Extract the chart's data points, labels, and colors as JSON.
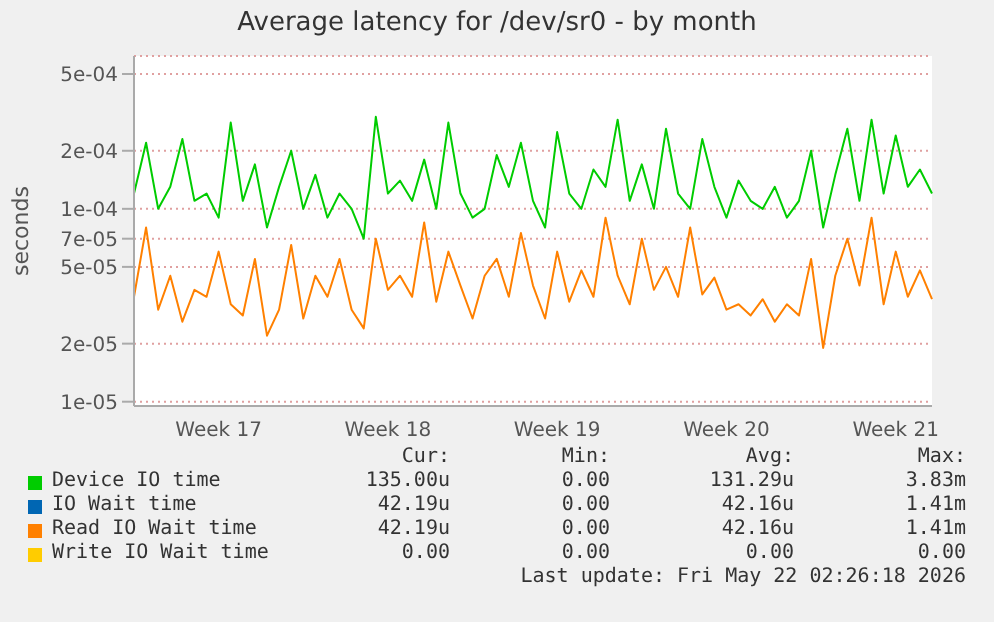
{
  "chart_data": {
    "type": "line",
    "title": "Average latency for /dev/sr0 - by month",
    "ylabel": "seconds",
    "categories": [
      null,
      null,
      null,
      null,
      null,
      null,
      null,
      "Week 17",
      null,
      null,
      null,
      null,
      null,
      null,
      null,
      null,
      null,
      null,
      null,
      null,
      null,
      "Week 18",
      null,
      null,
      null,
      null,
      null,
      null,
      null,
      null,
      null,
      null,
      null,
      null,
      null,
      "Week 19",
      null,
      null,
      null,
      null,
      null,
      null,
      null,
      null,
      null,
      null,
      null,
      null,
      null,
      "Week 20",
      null,
      null,
      null,
      null,
      null,
      null,
      null,
      null,
      null,
      null,
      null,
      null,
      null,
      "Week 21",
      null,
      null,
      null
    ],
    "ylim": [
      9.5e-06,
      0.00062
    ],
    "yticks": [
      {
        "value": 1e-05,
        "label": "1e-05"
      },
      {
        "value": 2e-05,
        "label": "2e-05"
      },
      {
        "value": 5e-05,
        "label": "5e-05"
      },
      {
        "value": 7e-05,
        "label": "7e-05"
      },
      {
        "value": 0.0001,
        "label": "1e-04"
      },
      {
        "value": 0.0002,
        "label": "2e-04"
      },
      {
        "value": 0.0005,
        "label": "5e-04"
      }
    ],
    "log": "y",
    "grid": true,
    "legend": "bottom",
    "series": [
      {
        "name": "Device IO time",
        "color": "#00cc00",
        "values": [
          0.00012,
          0.00022,
          0.0001,
          0.00013,
          0.00023,
          0.00011,
          0.00012,
          9e-05,
          0.00028,
          0.00011,
          0.00017,
          8e-05,
          0.00013,
          0.0002,
          0.0001,
          0.00015,
          9e-05,
          0.00012,
          0.0001,
          7e-05,
          0.0003,
          0.00012,
          0.00014,
          0.00011,
          0.00018,
          0.0001,
          0.00028,
          0.00012,
          9e-05,
          0.0001,
          0.00019,
          0.00013,
          0.00022,
          0.00011,
          8e-05,
          0.00025,
          0.00012,
          0.0001,
          0.00016,
          0.00013,
          0.00029,
          0.00011,
          0.00017,
          0.0001,
          0.00026,
          0.00012,
          0.0001,
          0.00023,
          0.00013,
          9e-05,
          0.00014,
          0.00011,
          0.0001,
          0.00013,
          9e-05,
          0.00011,
          0.0002,
          8e-05,
          0.00015,
          0.00026,
          0.00011,
          0.00029,
          0.00012,
          0.00024,
          0.00013,
          0.00016,
          0.00012
        ]
      },
      {
        "name": "IO Wait time",
        "color": "#0066b3",
        "values": [
          null,
          null,
          null,
          null,
          null,
          null,
          null,
          null,
          null,
          null,
          null,
          null,
          null,
          null,
          null,
          null,
          null,
          null,
          null,
          null,
          null,
          null,
          null,
          null,
          null,
          null,
          null,
          null,
          null,
          null,
          null,
          null,
          null,
          null,
          null,
          null,
          null,
          null,
          null,
          null,
          null,
          null,
          null,
          null,
          null,
          null,
          null,
          null,
          null,
          null,
          null,
          null,
          null,
          null,
          null,
          null,
          null,
          null,
          null,
          null,
          null,
          null,
          null,
          null,
          null,
          null,
          null
        ]
      },
      {
        "name": "Read IO Wait time",
        "color": "#ff8000",
        "values": [
          3.5e-05,
          8e-05,
          3e-05,
          4.5e-05,
          2.6e-05,
          3.8e-05,
          3.5e-05,
          6e-05,
          3.2e-05,
          2.8e-05,
          5.5e-05,
          2.2e-05,
          3e-05,
          6.5e-05,
          2.7e-05,
          4.5e-05,
          3.5e-05,
          5.5e-05,
          3e-05,
          2.4e-05,
          7e-05,
          3.8e-05,
          4.5e-05,
          3.5e-05,
          8.5e-05,
          3.3e-05,
          6e-05,
          4e-05,
          2.7e-05,
          4.5e-05,
          5.5e-05,
          3.5e-05,
          7.5e-05,
          4e-05,
          2.7e-05,
          6e-05,
          3.3e-05,
          4.8e-05,
          3.5e-05,
          9e-05,
          4.5e-05,
          3.2e-05,
          7e-05,
          3.8e-05,
          5e-05,
          3.5e-05,
          8e-05,
          3.6e-05,
          4.4e-05,
          3e-05,
          3.2e-05,
          2.8e-05,
          3.4e-05,
          2.6e-05,
          3.2e-05,
          2.8e-05,
          5.5e-05,
          1.9e-05,
          4.5e-05,
          7e-05,
          4e-05,
          9e-05,
          3.2e-05,
          6e-05,
          3.5e-05,
          4.8e-05,
          3.4e-05
        ]
      },
      {
        "name": "Write IO Wait time",
        "color": "#ffcc00",
        "values": [
          null,
          null,
          null,
          null,
          null,
          null,
          null,
          null,
          null,
          null,
          null,
          null,
          null,
          null,
          null,
          null,
          null,
          null,
          null,
          null,
          null,
          null,
          null,
          null,
          null,
          null,
          null,
          null,
          null,
          null,
          null,
          null,
          null,
          null,
          null,
          null,
          null,
          null,
          null,
          null,
          null,
          null,
          null,
          null,
          null,
          null,
          null,
          null,
          null,
          null,
          null,
          null,
          null,
          null,
          null,
          null,
          null,
          null,
          null,
          null,
          null,
          null,
          null,
          null,
          null,
          null,
          null
        ]
      }
    ],
    "annotations": [
      "Cur:",
      "Min:",
      "Avg:",
      "Max:",
      "135.00u",
      "0.00",
      "131.29u",
      "3.83m",
      "42.19u",
      "0.00",
      "42.16u",
      "1.41m",
      "42.19u",
      "0.00",
      "42.16u",
      "1.41m",
      "0.00",
      "0.00",
      "0.00",
      "0.00",
      "Last update: Fri May 22 02:26:18 2026"
    ]
  }
}
